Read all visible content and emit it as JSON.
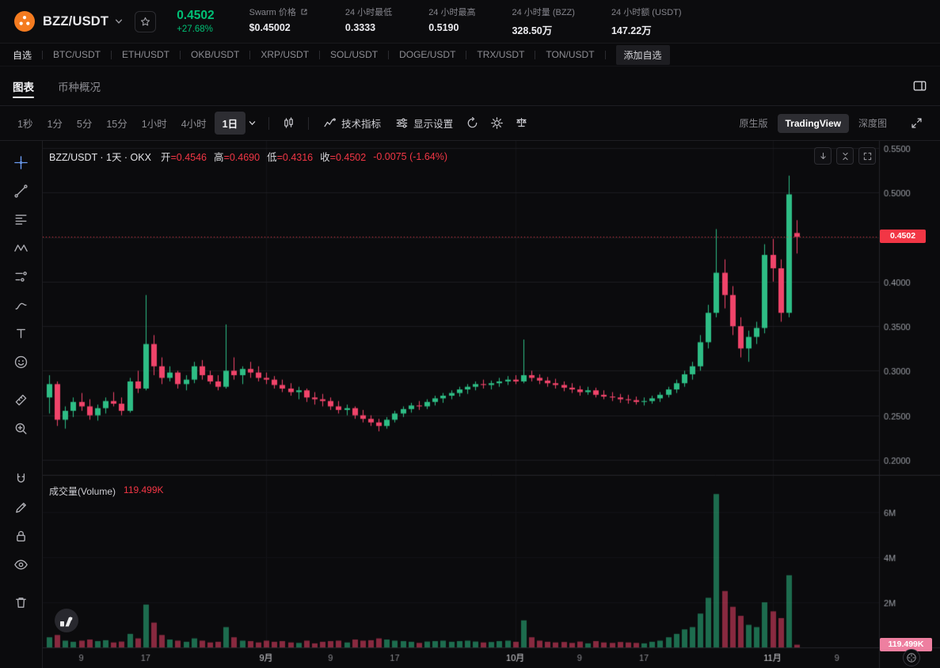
{
  "header": {
    "pair": "BZZ/USDT",
    "price": "0.4502",
    "change": "+27.68%",
    "stats": [
      {
        "label": "Swarm 价格",
        "value": "$0.45002",
        "external": true
      },
      {
        "label": "24 小时最低",
        "value": "0.3333"
      },
      {
        "label": "24 小时最高",
        "value": "0.5190"
      },
      {
        "label": "24 小时量 (BZZ)",
        "value": "328.50万"
      },
      {
        "label": "24 小时额 (USDT)",
        "value": "147.22万"
      }
    ]
  },
  "pairs_bar": {
    "favorites_label": "自选",
    "pairs": [
      "BTC/USDT",
      "ETH/USDT",
      "OKB/USDT",
      "XRP/USDT",
      "SOL/USDT",
      "DOGE/USDT",
      "TRX/USDT",
      "TON/USDT"
    ],
    "add_label": "添加自选"
  },
  "view_tabs": [
    {
      "label": "图表",
      "active": true
    },
    {
      "label": "币种概况",
      "active": false
    }
  ],
  "toolbar": {
    "timeframes": [
      "1秒",
      "1分",
      "5分",
      "15分",
      "1小时",
      "4小时",
      "1日"
    ],
    "active_timeframe": "1日",
    "indicators_label": "技术指标",
    "display_label": "显示设置",
    "right_tabs": [
      "原生版",
      "TradingView",
      "深度图"
    ],
    "active_right_tab": "TradingView"
  },
  "legend": {
    "title": "BZZ/USDT · 1天 · OKX",
    "items": [
      {
        "label": "开",
        "value": "0.4546"
      },
      {
        "label": "高",
        "value": "0.4690"
      },
      {
        "label": "低",
        "value": "0.4316"
      },
      {
        "label": "收",
        "value": "0.4502"
      }
    ],
    "change": "-0.0075 (-1.64%)"
  },
  "volume_legend": {
    "label": "成交量(Volume)",
    "value": "119.499K"
  },
  "chart_data": {
    "type": "candlestick",
    "pair": "BZZ/USDT",
    "interval": "1天",
    "exchange": "OKX",
    "price_range": [
      0.2,
      0.55
    ],
    "volume_unit": "M",
    "price_ticks": [
      {
        "label": "0.5500",
        "v": 0.55
      },
      {
        "label": "0.5000",
        "v": 0.5
      },
      {
        "label": "0.4500",
        "v": 0.45
      },
      {
        "label": "0.4000",
        "v": 0.4
      },
      {
        "label": "0.3500",
        "v": 0.35
      },
      {
        "label": "0.3000",
        "v": 0.3
      },
      {
        "label": "0.2500",
        "v": 0.25
      },
      {
        "label": "0.2000",
        "v": 0.2
      }
    ],
    "volume_ticks": [
      {
        "label": "6M",
        "v": 6
      },
      {
        "label": "4M",
        "v": 4
      },
      {
        "label": "2M",
        "v": 2
      }
    ],
    "time_labels": [
      {
        "label": "9",
        "i": 4
      },
      {
        "label": "17",
        "i": 12
      },
      {
        "label": "9月",
        "i": 27,
        "month": true
      },
      {
        "label": "9",
        "i": 35
      },
      {
        "label": "17",
        "i": 43
      },
      {
        "label": "10月",
        "i": 58,
        "month": true
      },
      {
        "label": "9",
        "i": 66
      },
      {
        "label": "17",
        "i": 74
      },
      {
        "label": "11月",
        "i": 90,
        "month": true
      },
      {
        "label": "9",
        "i": 98
      }
    ],
    "last_price": 0.4502,
    "last_price_label": "0.4502",
    "last_volume_label": "119.499K",
    "ohlc_last": {
      "open": 0.4546,
      "high": 0.469,
      "low": 0.4316,
      "close": 0.4502
    },
    "candles": [
      [
        0.27,
        0.295,
        0.252,
        0.285,
        0.45
      ],
      [
        0.285,
        0.288,
        0.238,
        0.245,
        0.55
      ],
      [
        0.245,
        0.26,
        0.235,
        0.255,
        0.3
      ],
      [
        0.255,
        0.27,
        0.248,
        0.265,
        0.25
      ],
      [
        0.265,
        0.275,
        0.255,
        0.26,
        0.3
      ],
      [
        0.26,
        0.268,
        0.245,
        0.25,
        0.35
      ],
      [
        0.25,
        0.262,
        0.244,
        0.258,
        0.28
      ],
      [
        0.258,
        0.27,
        0.252,
        0.266,
        0.32
      ],
      [
        0.266,
        0.276,
        0.26,
        0.263,
        0.22
      ],
      [
        0.263,
        0.27,
        0.25,
        0.255,
        0.26
      ],
      [
        0.255,
        0.292,
        0.253,
        0.288,
        0.6
      ],
      [
        0.288,
        0.3,
        0.275,
        0.28,
        0.4
      ],
      [
        0.28,
        0.385,
        0.278,
        0.33,
        1.9
      ],
      [
        0.33,
        0.34,
        0.295,
        0.305,
        1.1
      ],
      [
        0.305,
        0.315,
        0.285,
        0.292,
        0.55
      ],
      [
        0.292,
        0.305,
        0.288,
        0.298,
        0.35
      ],
      [
        0.298,
        0.3,
        0.28,
        0.285,
        0.3
      ],
      [
        0.285,
        0.295,
        0.278,
        0.29,
        0.25
      ],
      [
        0.29,
        0.31,
        0.286,
        0.305,
        0.4
      ],
      [
        0.305,
        0.312,
        0.29,
        0.295,
        0.3
      ],
      [
        0.295,
        0.3,
        0.285,
        0.288,
        0.22
      ],
      [
        0.288,
        0.295,
        0.278,
        0.282,
        0.25
      ],
      [
        0.282,
        0.352,
        0.28,
        0.3,
        0.9
      ],
      [
        0.3,
        0.315,
        0.29,
        0.295,
        0.45
      ],
      [
        0.295,
        0.305,
        0.285,
        0.302,
        0.3
      ],
      [
        0.302,
        0.31,
        0.292,
        0.298,
        0.28
      ],
      [
        0.298,
        0.305,
        0.288,
        0.292,
        0.22
      ],
      [
        0.292,
        0.298,
        0.285,
        0.29,
        0.3
      ],
      [
        0.29,
        0.294,
        0.28,
        0.284,
        0.25
      ],
      [
        0.284,
        0.29,
        0.276,
        0.28,
        0.28
      ],
      [
        0.28,
        0.286,
        0.272,
        0.276,
        0.22
      ],
      [
        0.276,
        0.282,
        0.268,
        0.278,
        0.2
      ],
      [
        0.278,
        0.28,
        0.265,
        0.27,
        0.3
      ],
      [
        0.27,
        0.276,
        0.262,
        0.268,
        0.18
      ],
      [
        0.268,
        0.274,
        0.26,
        0.266,
        0.25
      ],
      [
        0.266,
        0.27,
        0.256,
        0.26,
        0.28
      ],
      [
        0.26,
        0.266,
        0.252,
        0.256,
        0.3
      ],
      [
        0.256,
        0.262,
        0.25,
        0.258,
        0.22
      ],
      [
        0.258,
        0.26,
        0.246,
        0.25,
        0.35
      ],
      [
        0.25,
        0.256,
        0.242,
        0.246,
        0.3
      ],
      [
        0.246,
        0.25,
        0.238,
        0.242,
        0.32
      ],
      [
        0.242,
        0.246,
        0.232,
        0.238,
        0.4
      ],
      [
        0.238,
        0.248,
        0.235,
        0.245,
        0.35
      ],
      [
        0.245,
        0.255,
        0.242,
        0.252,
        0.3
      ],
      [
        0.252,
        0.26,
        0.248,
        0.257,
        0.28
      ],
      [
        0.257,
        0.264,
        0.253,
        0.261,
        0.25
      ],
      [
        0.261,
        0.266,
        0.256,
        0.26,
        0.2
      ],
      [
        0.26,
        0.268,
        0.257,
        0.265,
        0.26
      ],
      [
        0.265,
        0.272,
        0.261,
        0.269,
        0.28
      ],
      [
        0.269,
        0.275,
        0.264,
        0.272,
        0.3
      ],
      [
        0.272,
        0.278,
        0.268,
        0.275,
        0.25
      ],
      [
        0.275,
        0.282,
        0.271,
        0.279,
        0.28
      ],
      [
        0.279,
        0.285,
        0.274,
        0.282,
        0.3
      ],
      [
        0.282,
        0.288,
        0.278,
        0.285,
        0.26
      ],
      [
        0.285,
        0.29,
        0.28,
        0.284,
        0.22
      ],
      [
        0.284,
        0.289,
        0.279,
        0.286,
        0.24
      ],
      [
        0.286,
        0.292,
        0.282,
        0.288,
        0.28
      ],
      [
        0.288,
        0.294,
        0.284,
        0.29,
        0.3
      ],
      [
        0.29,
        0.295,
        0.285,
        0.288,
        0.25
      ],
      [
        0.288,
        0.335,
        0.286,
        0.295,
        1.2
      ],
      [
        0.295,
        0.3,
        0.288,
        0.292,
        0.45
      ],
      [
        0.292,
        0.296,
        0.285,
        0.289,
        0.3
      ],
      [
        0.289,
        0.293,
        0.282,
        0.286,
        0.25
      ],
      [
        0.286,
        0.291,
        0.28,
        0.284,
        0.22
      ],
      [
        0.284,
        0.288,
        0.277,
        0.281,
        0.24
      ],
      [
        0.281,
        0.286,
        0.275,
        0.279,
        0.2
      ],
      [
        0.279,
        0.283,
        0.272,
        0.276,
        0.26
      ],
      [
        0.276,
        0.282,
        0.273,
        0.278,
        0.18
      ],
      [
        0.278,
        0.281,
        0.27,
        0.273,
        0.28
      ],
      [
        0.273,
        0.278,
        0.268,
        0.271,
        0.22
      ],
      [
        0.271,
        0.276,
        0.266,
        0.27,
        0.2
      ],
      [
        0.27,
        0.274,
        0.264,
        0.268,
        0.24
      ],
      [
        0.268,
        0.273,
        0.263,
        0.267,
        0.22
      ],
      [
        0.267,
        0.271,
        0.262,
        0.265,
        0.2
      ],
      [
        0.265,
        0.27,
        0.261,
        0.266,
        0.18
      ],
      [
        0.266,
        0.272,
        0.263,
        0.269,
        0.25
      ],
      [
        0.269,
        0.276,
        0.265,
        0.273,
        0.3
      ],
      [
        0.273,
        0.282,
        0.27,
        0.279,
        0.45
      ],
      [
        0.279,
        0.29,
        0.275,
        0.286,
        0.6
      ],
      [
        0.286,
        0.3,
        0.282,
        0.296,
        0.8
      ],
      [
        0.296,
        0.31,
        0.29,
        0.305,
        0.9
      ],
      [
        0.305,
        0.34,
        0.3,
        0.332,
        1.5
      ],
      [
        0.332,
        0.374,
        0.325,
        0.365,
        2.2
      ],
      [
        0.365,
        0.459,
        0.36,
        0.41,
        6.8
      ],
      [
        0.41,
        0.425,
        0.37,
        0.385,
        2.5
      ],
      [
        0.385,
        0.395,
        0.34,
        0.35,
        1.8
      ],
      [
        0.35,
        0.36,
        0.315,
        0.325,
        1.4
      ],
      [
        0.325,
        0.345,
        0.31,
        0.338,
        1.0
      ],
      [
        0.338,
        0.355,
        0.33,
        0.348,
        0.9
      ],
      [
        0.348,
        0.442,
        0.342,
        0.43,
        2.0
      ],
      [
        0.43,
        0.448,
        0.4,
        0.415,
        1.6
      ],
      [
        0.415,
        0.425,
        0.355,
        0.365,
        1.3
      ],
      [
        0.365,
        0.519,
        0.36,
        0.498,
        3.2
      ],
      [
        0.4546,
        0.469,
        0.4316,
        0.4502,
        0.1195
      ]
    ]
  },
  "colors": {
    "up": "#2ebd85",
    "down": "#f0446a",
    "accent_green": "#00c076",
    "price_line": "#f23645",
    "price_chip_bg": "#f23645",
    "volume_chip_bg": "#ee7fa0",
    "axis_text": "#9b9ea5",
    "grid": "#1d1d21"
  }
}
